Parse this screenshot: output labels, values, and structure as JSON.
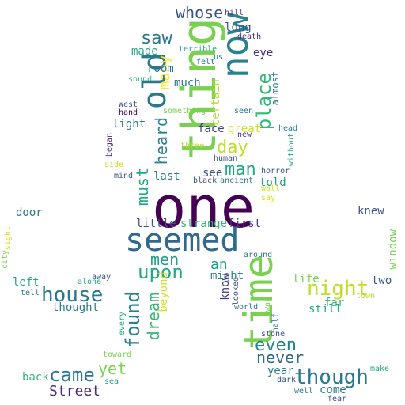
{
  "words": [
    {
      "text": "one",
      "color": "#440154"
    },
    {
      "text": "thing",
      "color": "#7ad151"
    },
    {
      "text": "time",
      "color": "#7ad151"
    },
    {
      "text": "seemed",
      "color": "#31688e"
    },
    {
      "text": "now",
      "color": "#26828e"
    },
    {
      "text": "old",
      "color": "#2a788e"
    },
    {
      "text": "though",
      "color": "#2a788e"
    },
    {
      "text": "night",
      "color": "#bddf26"
    },
    {
      "text": "house",
      "color": "#2a788e"
    },
    {
      "text": "came",
      "color": "#2a788e"
    },
    {
      "text": "found",
      "color": "#26828e"
    },
    {
      "text": "upon",
      "color": "#22a884"
    },
    {
      "text": "place",
      "color": "#35b779"
    },
    {
      "text": "man",
      "color": "#22a884"
    },
    {
      "text": "saw",
      "color": "#2a788e"
    },
    {
      "text": "even",
      "color": "#26828e"
    },
    {
      "text": "day",
      "color": "#bddf26"
    },
    {
      "text": "whose",
      "color": "#3b528b"
    },
    {
      "text": "men",
      "color": "#1f9e89"
    },
    {
      "text": "must",
      "color": "#22a884"
    },
    {
      "text": "heard",
      "color": "#26828e"
    },
    {
      "text": "dream",
      "color": "#35b779"
    },
    {
      "text": "yet",
      "color": "#7ad151"
    },
    {
      "text": "never",
      "color": "#31688e"
    },
    {
      "text": "Street",
      "color": "#472d7b"
    },
    {
      "text": "an",
      "color": "#1f9e89"
    },
    {
      "text": "many",
      "color": "#fde725"
    },
    {
      "text": "little",
      "color": "#3b528b"
    },
    {
      "text": "first",
      "color": "#443983"
    },
    {
      "text": "knew",
      "color": "#3b528b"
    },
    {
      "text": "thought",
      "color": "#287c8e"
    },
    {
      "text": "back",
      "color": "#35b779"
    },
    {
      "text": "door",
      "color": "#2a788e"
    },
    {
      "text": "left",
      "color": "#22a884"
    },
    {
      "text": "still",
      "color": "#22a884"
    },
    {
      "text": "life",
      "color": "#7ad151"
    },
    {
      "text": "two",
      "color": "#3b528b"
    },
    {
      "text": "far",
      "color": "#35b779"
    },
    {
      "text": "room",
      "color": "#2a788e"
    },
    {
      "text": "long",
      "color": "#3b528b"
    },
    {
      "text": "eye",
      "color": "#472d7b"
    },
    {
      "text": "made",
      "color": "#22a884"
    },
    {
      "text": "much",
      "color": "#2a788e"
    },
    {
      "text": "light",
      "color": "#2a788e"
    },
    {
      "text": "face",
      "color": "#433e85"
    },
    {
      "text": "great",
      "color": "#d2e21b"
    },
    {
      "text": "see",
      "color": "#3b528b"
    },
    {
      "text": "last",
      "color": "#2a788e"
    },
    {
      "text": "told",
      "color": "#1f9e89"
    },
    {
      "text": "strange",
      "color": "#35b779"
    },
    {
      "text": "might",
      "color": "#26828e"
    },
    {
      "text": "know",
      "color": "#443983"
    },
    {
      "text": "beyond",
      "color": "#d2e21b"
    },
    {
      "text": "come",
      "color": "#2a788e"
    },
    {
      "text": "year",
      "color": "#26828e"
    },
    {
      "text": "window",
      "color": "#7ad151"
    },
    {
      "text": "certain",
      "color": "#b5de2b"
    },
    {
      "text": "almost",
      "color": "#2a788e"
    },
    {
      "text": "hill",
      "color": "#443983"
    },
    {
      "text": "death",
      "color": "#472d7b"
    },
    {
      "text": "terrible",
      "color": "#22a884"
    },
    {
      "text": "felt",
      "color": "#2a788e"
    },
    {
      "text": "us",
      "color": "#26828e"
    },
    {
      "text": "sound",
      "color": "#35b779"
    },
    {
      "text": "West",
      "color": "#3b528b"
    },
    {
      "text": "hand",
      "color": "#440154"
    },
    {
      "text": "something",
      "color": "#7ad151"
    },
    {
      "text": "seen",
      "color": "#2a788e"
    },
    {
      "text": "new",
      "color": "#443983"
    },
    {
      "text": "head",
      "color": "#26828e"
    },
    {
      "text": "human",
      "color": "#3b528b"
    },
    {
      "text": "without",
      "color": "#22a884"
    },
    {
      "text": "three",
      "color": "#b5de2b"
    },
    {
      "text": "began",
      "color": "#472d7b"
    },
    {
      "text": "side",
      "color": "#d2e21b"
    },
    {
      "text": "mind",
      "color": "#3b528b"
    },
    {
      "text": "black",
      "color": "#3b528b"
    },
    {
      "text": "ancient",
      "color": "#2a788e"
    },
    {
      "text": "horror",
      "color": "#3b528b"
    },
    {
      "text": "wall",
      "color": "#d2e21b"
    },
    {
      "text": "say",
      "color": "#d2e21b"
    },
    {
      "text": "sight",
      "color": "#d2e21b"
    },
    {
      "text": "city",
      "color": "#7ad151"
    },
    {
      "text": "around",
      "color": "#2a788e"
    },
    {
      "text": "alone",
      "color": "#22a884"
    },
    {
      "text": "away",
      "color": "#3b528b"
    },
    {
      "text": "tell",
      "color": "#2a788e"
    },
    {
      "text": "looked",
      "color": "#3b528b"
    },
    {
      "text": "world",
      "color": "#2a788e"
    },
    {
      "text": "way",
      "color": "#7ad151"
    },
    {
      "text": "half",
      "color": "#2a788e"
    },
    {
      "text": "stone",
      "color": "#3b528b"
    },
    {
      "text": "town",
      "color": "#b5de2b"
    },
    {
      "text": "every",
      "color": "#22a884"
    },
    {
      "text": "toward",
      "color": "#7ad151"
    },
    {
      "text": "sea",
      "color": "#1f9e89"
    },
    {
      "text": "dark",
      "color": "#3b528b"
    },
    {
      "text": "make",
      "color": "#22a884"
    },
    {
      "text": "well",
      "color": "#2a788e"
    },
    {
      "text": "fear",
      "color": "#3b528b"
    }
  ]
}
